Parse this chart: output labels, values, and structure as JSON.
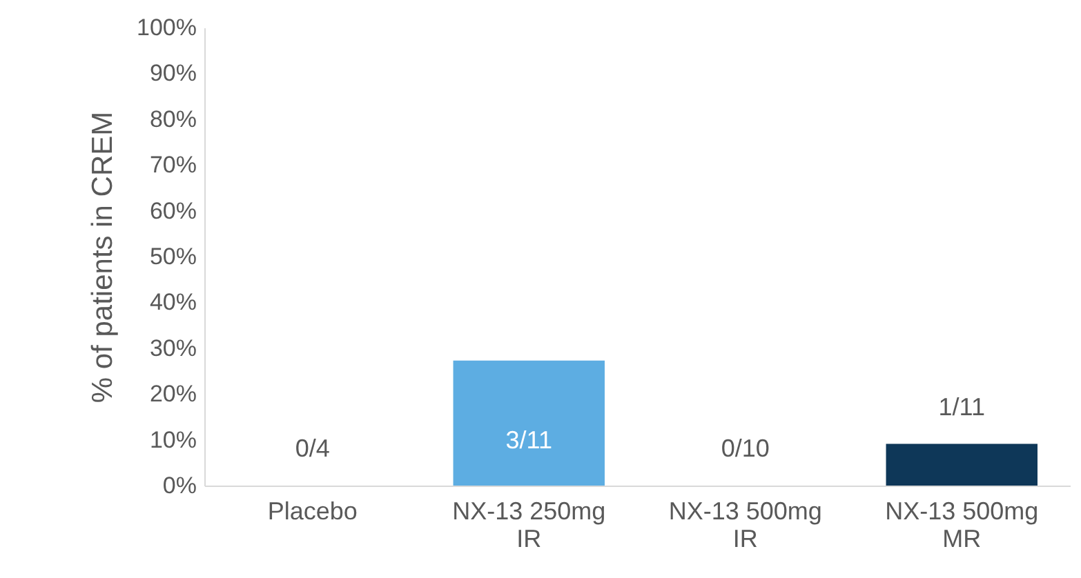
{
  "chart_data": {
    "type": "bar",
    "ylabel": "% of patients in CREM",
    "categories": [
      "Placebo",
      "NX-13 250mg IR",
      "NX-13 500mg IR",
      "NX-13 500mg MR"
    ],
    "values": [
      0,
      27.3,
      0,
      9.1
    ],
    "colors": [
      "#5dade2",
      "#5dade2",
      "#5dade2",
      "#0e3758"
    ],
    "value_labels": [
      "0/4",
      "3/11",
      "0/10",
      "1/11"
    ],
    "ylim": [
      0,
      100
    ],
    "yticks": [
      {
        "value": 0,
        "label": "0%"
      },
      {
        "value": 10,
        "label": "10%"
      },
      {
        "value": 20,
        "label": "20%"
      },
      {
        "value": 30,
        "label": "30%"
      },
      {
        "value": 40,
        "label": "40%"
      },
      {
        "value": 50,
        "label": "50%"
      },
      {
        "value": 60,
        "label": "60%"
      },
      {
        "value": 70,
        "label": "70%"
      },
      {
        "value": 80,
        "label": "80%"
      },
      {
        "value": 90,
        "label": "90%"
      },
      {
        "value": 100,
        "label": "100%"
      }
    ],
    "grid": false
  }
}
